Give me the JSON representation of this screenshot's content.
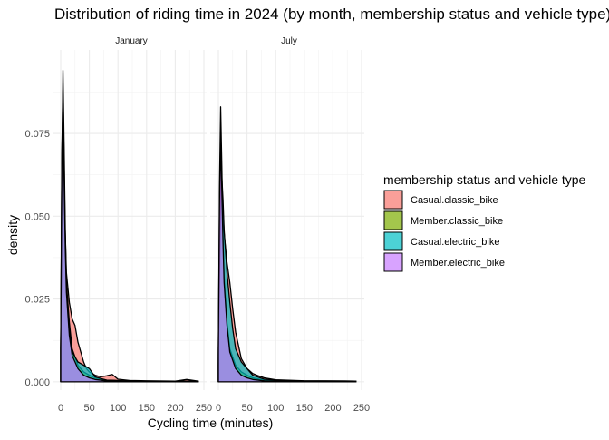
{
  "chart_data": {
    "type": "area",
    "title": "Distribution of riding time in 2024 (by month, membership status and vehicle type)",
    "xlabel": "Cycling time (minutes)",
    "ylabel": "density",
    "xlim": [
      0,
      250
    ],
    "ylim": [
      0,
      0.1
    ],
    "x_ticks": [
      0,
      50,
      100,
      150,
      200,
      250
    ],
    "x_tick_labels": [
      "0",
      "50",
      "100",
      "150",
      "200",
      "250"
    ],
    "y_ticks": [
      0,
      0.025,
      0.05,
      0.075
    ],
    "y_tick_labels": [
      "0.000",
      "0.025",
      "0.050",
      "0.075"
    ],
    "grid": true,
    "legend": {
      "title": "membership status and vehicle type",
      "position": "right",
      "items": [
        {
          "label": "Casual.classic_bike",
          "color": "#F8766D"
        },
        {
          "label": "Member.classic_bike",
          "color": "#7CAE00"
        },
        {
          "label": "Casual.electric_bike",
          "color": "#00BFC4"
        },
        {
          "label": "Member.electric_bike",
          "color": "#C77CFF"
        }
      ]
    },
    "fill_alpha": 0.7,
    "panels": [
      {
        "label": "January",
        "series": [
          {
            "name": "Casual.classic_bike",
            "x": [
              0,
              3,
              5,
              7,
              10,
              15,
              20,
              25,
              30,
              40,
              45,
              50,
              60,
              70,
              80,
              90,
              100,
              120,
              150,
              200,
              220,
              240
            ],
            "y": [
              0.01,
              0.06,
              0.075,
              0.05,
              0.033,
              0.024,
              0.019,
              0.017,
              0.012,
              0.006,
              0.004,
              0.003,
              0.002,
              0.0015,
              0.0018,
              0.0022,
              0.0008,
              0.0004,
              0.0003,
              0.0002,
              0.0007,
              0.0002
            ]
          },
          {
            "name": "Member.classic_bike",
            "x": [
              0,
              2,
              4,
              6,
              8,
              10,
              15,
              20,
              30,
              40,
              50,
              60,
              80,
              120,
              240
            ],
            "y": [
              0.01,
              0.065,
              0.094,
              0.07,
              0.045,
              0.03,
              0.018,
              0.01,
              0.005,
              0.003,
              0.002,
              0.0012,
              0.0005,
              0.0002,
              0.0002
            ]
          },
          {
            "name": "Casual.electric_bike",
            "x": [
              0,
              2,
              4,
              6,
              8,
              10,
              15,
              20,
              30,
              40,
              50,
              60,
              80,
              120,
              240
            ],
            "y": [
              0.01,
              0.07,
              0.088,
              0.065,
              0.042,
              0.028,
              0.016,
              0.009,
              0.006,
              0.005,
              0.004,
              0.0015,
              0.0005,
              0.0002,
              0.0002
            ]
          },
          {
            "name": "Member.electric_bike",
            "x": [
              0,
              2,
              4,
              6,
              8,
              10,
              15,
              20,
              30,
              40,
              50,
              60,
              80,
              120,
              240
            ],
            "y": [
              0.01,
              0.065,
              0.084,
              0.06,
              0.04,
              0.027,
              0.014,
              0.008,
              0.004,
              0.002,
              0.0012,
              0.0007,
              0.0003,
              0.0002,
              0.0002
            ]
          }
        ]
      },
      {
        "label": "July",
        "series": [
          {
            "name": "Casual.classic_bike",
            "x": [
              0,
              3,
              5,
              8,
              10,
              15,
              20,
              25,
              30,
              40,
              50,
              60,
              70,
              80,
              100,
              150,
              240
            ],
            "y": [
              0.005,
              0.04,
              0.06,
              0.052,
              0.045,
              0.036,
              0.03,
              0.022,
              0.015,
              0.007,
              0.004,
              0.0025,
              0.0018,
              0.0012,
              0.0006,
              0.0003,
              0.0002
            ]
          },
          {
            "name": "Member.classic_bike",
            "x": [
              0,
              2,
              4,
              6,
              8,
              10,
              15,
              20,
              30,
              40,
              50,
              60,
              80,
              120,
              240
            ],
            "y": [
              0.01,
              0.06,
              0.083,
              0.065,
              0.045,
              0.032,
              0.018,
              0.01,
              0.005,
              0.003,
              0.002,
              0.0012,
              0.0005,
              0.0002,
              0.0002
            ]
          },
          {
            "name": "Casual.electric_bike",
            "x": [
              0,
              3,
              5,
              8,
              10,
              15,
              20,
              25,
              30,
              40,
              50,
              60,
              80,
              120,
              240
            ],
            "y": [
              0.008,
              0.045,
              0.065,
              0.055,
              0.046,
              0.033,
              0.024,
              0.016,
              0.01,
              0.006,
              0.004,
              0.002,
              0.0008,
              0.0003,
              0.0002
            ]
          },
          {
            "name": "Member.electric_bike",
            "x": [
              0,
              2,
              4,
              6,
              8,
              10,
              15,
              20,
              30,
              40,
              50,
              60,
              80,
              120,
              240
            ],
            "y": [
              0.01,
              0.055,
              0.072,
              0.058,
              0.042,
              0.03,
              0.017,
              0.009,
              0.004,
              0.002,
              0.0012,
              0.0007,
              0.0003,
              0.0002,
              0.0002
            ]
          }
        ]
      }
    ]
  }
}
